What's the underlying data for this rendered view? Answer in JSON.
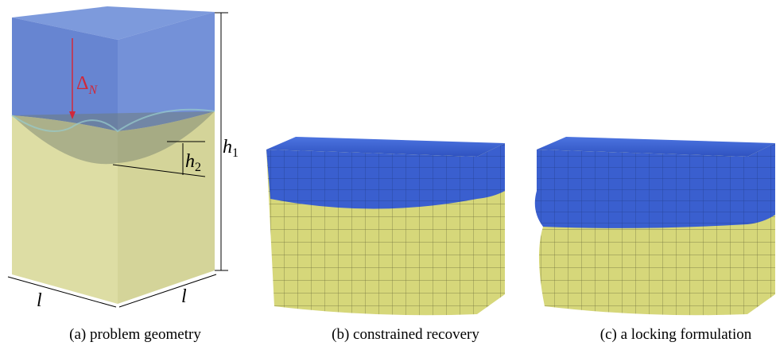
{
  "panels": [
    {
      "caption": "(a) problem geometry",
      "labels": {
        "delta": "Δ",
        "delta_sub": "N",
        "h1": "h",
        "h1_sub": "1",
        "h2": "h",
        "h2_sub": "2",
        "l_left": "l",
        "l_right": "l"
      }
    },
    {
      "caption": "(b) constrained recovery"
    },
    {
      "caption": "(c) a locking formulation"
    }
  ]
}
